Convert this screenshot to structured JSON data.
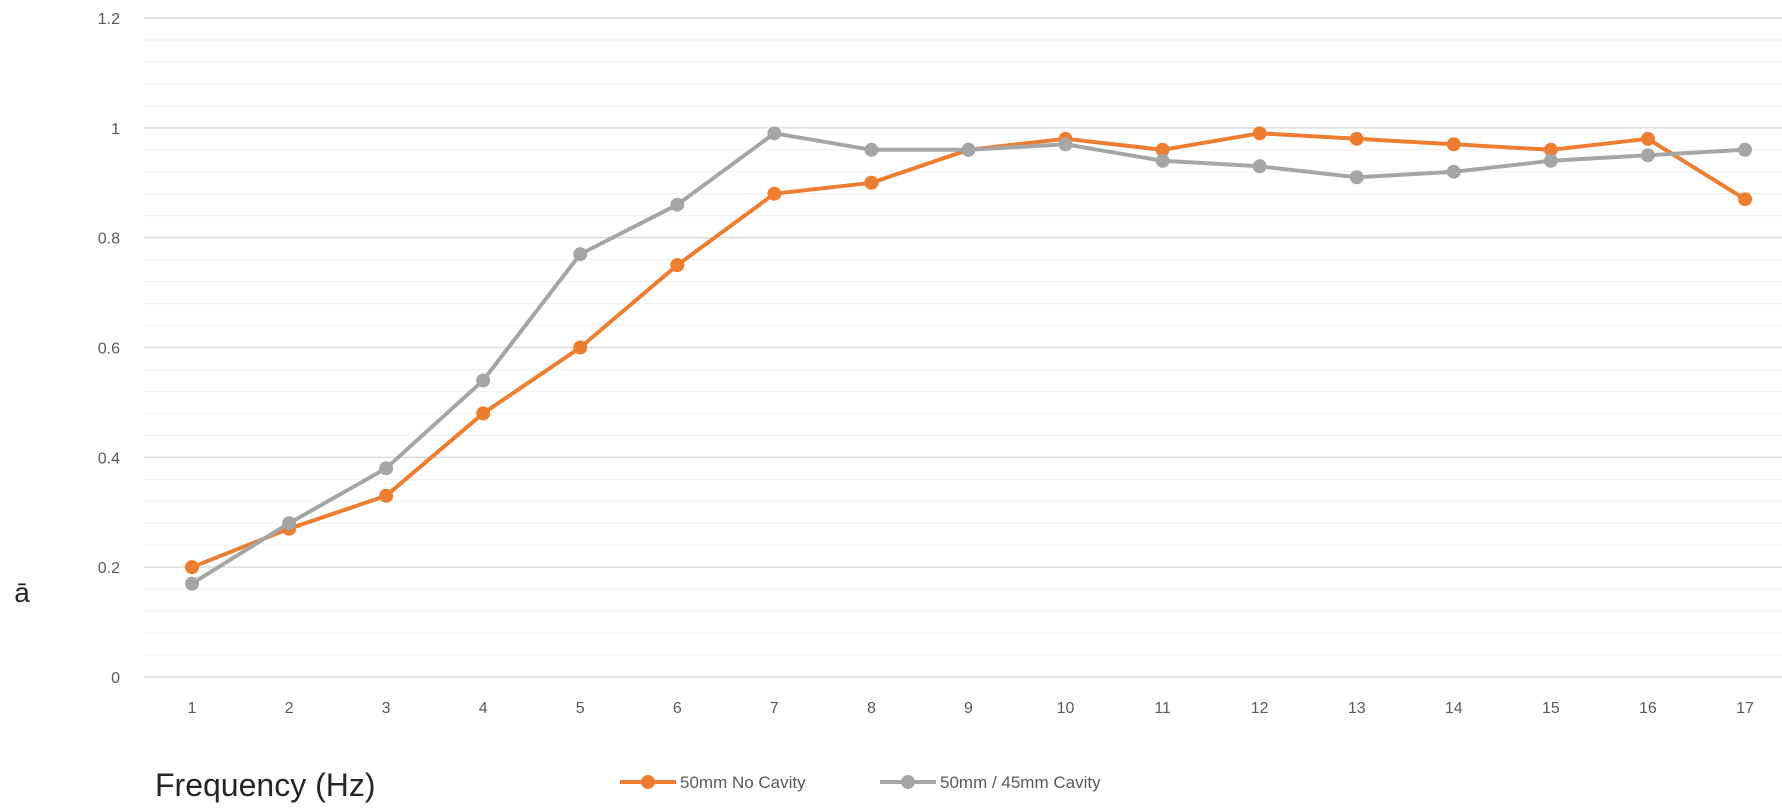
{
  "chart_data": {
    "type": "line",
    "title": "",
    "xlabel": "Frequency (Hz)",
    "ylabel": "ā",
    "categories": [
      "1",
      "2",
      "3",
      "4",
      "5",
      "6",
      "7",
      "8",
      "9",
      "10",
      "11",
      "12",
      "13",
      "14",
      "15",
      "16",
      "17"
    ],
    "ylim": [
      0,
      1.2
    ],
    "yticks": [
      "0",
      "0.2",
      "0.4",
      "0.6",
      "0.8",
      "1",
      "1.2"
    ],
    "grid": true,
    "legend": "bottom",
    "series": [
      {
        "name": "50mm No Cavity",
        "color": "#ED7D31",
        "values": [
          0.2,
          0.27,
          0.33,
          0.48,
          0.6,
          0.75,
          0.88,
          0.9,
          0.96,
          0.98,
          0.96,
          0.99,
          0.98,
          0.97,
          0.96,
          0.98,
          0.87
        ]
      },
      {
        "name": "50mm / 45mm Cavity",
        "color": "#A5A5A5",
        "values": [
          0.17,
          0.28,
          0.38,
          0.54,
          0.77,
          0.86,
          0.99,
          0.96,
          0.96,
          0.97,
          0.94,
          0.93,
          0.91,
          0.92,
          0.94,
          0.95,
          0.96
        ]
      }
    ]
  }
}
